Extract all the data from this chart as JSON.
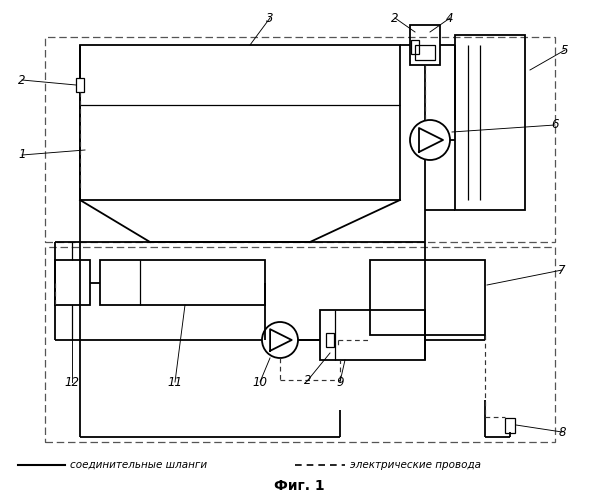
{
  "title": "Фиг. 1",
  "legend_solid": "соединительные шланги",
  "legend_dashed": "электрические провода",
  "bg_color": "#ffffff",
  "fig_width": 5.98,
  "fig_height": 5.0,
  "dpi": 100
}
